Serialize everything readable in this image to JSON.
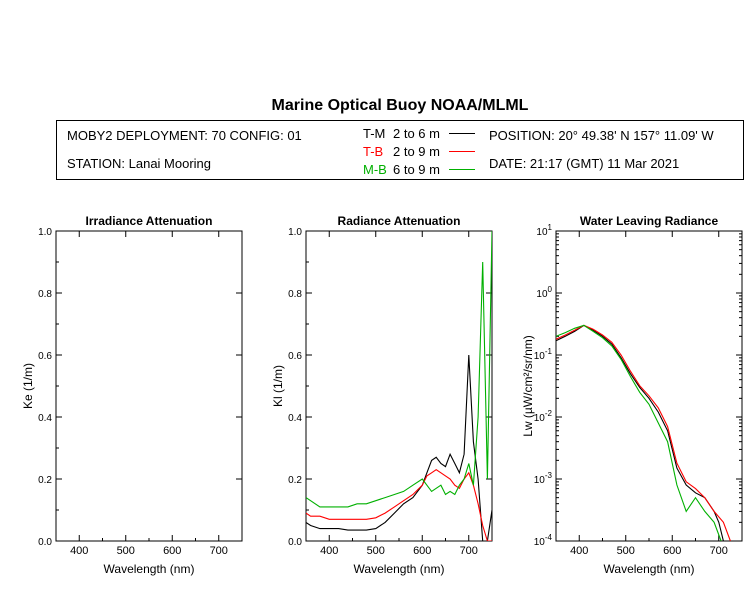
{
  "title": "Marine Optical Buoy NOAA/MLML",
  "info": {
    "deployment": "MOBY2 DEPLOYMENT: 70 CONFIG: 01",
    "station": "STATION: Lanai Mooring",
    "position": "POSITION: 20° 49.38' N   157° 11.09' W",
    "date": "DATE: 21:17 (GMT) 11 Mar 2021"
  },
  "legend": [
    {
      "label": "T-M",
      "depth": "2 to 6  m",
      "color": "#000000"
    },
    {
      "label": "T-B",
      "depth": "2 to 9  m",
      "color": "#ff0000"
    },
    {
      "label": "M-B",
      "depth": "6 to 9  m",
      "color": "#00b000"
    }
  ],
  "colors": {
    "tm": "#000000",
    "tb": "#ff0000",
    "mb": "#00b000"
  },
  "chart_data": [
    {
      "type": "line",
      "title": "Irradiance Attenuation",
      "xlabel": "Wavelength (nm)",
      "ylabel": "Ke  (1/m)",
      "xlim": [
        350,
        750
      ],
      "ylim": [
        0,
        1.0
      ],
      "xticks": [
        400,
        500,
        600,
        700
      ],
      "yticks": [
        "0.0",
        "0.2",
        "0.4",
        "0.6",
        "0.8",
        "1.0"
      ],
      "series": []
    },
    {
      "type": "line",
      "title": "Radiance Attenuation",
      "xlabel": "Wavelength (nm)",
      "ylabel": "Kl  (1/m)",
      "xlim": [
        350,
        750
      ],
      "ylim": [
        0,
        1.0
      ],
      "xticks": [
        400,
        500,
        600,
        700
      ],
      "yticks": [
        "0.0",
        "0.2",
        "0.4",
        "0.6",
        "0.8",
        "1.0"
      ],
      "series": [
        {
          "name": "T-M",
          "color": "#000000",
          "x": [
            350,
            360,
            380,
            400,
            420,
            440,
            460,
            480,
            500,
            520,
            540,
            560,
            580,
            600,
            610,
            620,
            630,
            640,
            650,
            660,
            670,
            680,
            690,
            700,
            710,
            720,
            730,
            740,
            750
          ],
          "y": [
            0.06,
            0.05,
            0.04,
            0.04,
            0.04,
            0.035,
            0.035,
            0.035,
            0.04,
            0.06,
            0.09,
            0.12,
            0.14,
            0.18,
            0.22,
            0.26,
            0.27,
            0.25,
            0.24,
            0.28,
            0.25,
            0.22,
            0.28,
            0.6,
            0.32,
            0.2,
            0.0,
            0.0,
            0.1
          ]
        },
        {
          "name": "T-B",
          "color": "#ff0000",
          "x": [
            350,
            360,
            380,
            400,
            420,
            440,
            460,
            480,
            500,
            520,
            540,
            560,
            580,
            600,
            610,
            620,
            630,
            640,
            650,
            660,
            670,
            680,
            690,
            700,
            710,
            720,
            730,
            740,
            750
          ],
          "y": [
            0.09,
            0.08,
            0.08,
            0.07,
            0.07,
            0.07,
            0.07,
            0.07,
            0.075,
            0.09,
            0.11,
            0.13,
            0.15,
            0.18,
            0.21,
            0.22,
            0.23,
            0.22,
            0.21,
            0.2,
            0.18,
            0.17,
            0.2,
            0.22,
            0.18,
            0.12,
            0.05,
            0.0,
            0.0
          ]
        },
        {
          "name": "M-B",
          "color": "#00b000",
          "x": [
            350,
            360,
            380,
            400,
            420,
            440,
            460,
            480,
            500,
            520,
            540,
            560,
            580,
            600,
            610,
            620,
            630,
            640,
            650,
            660,
            670,
            680,
            690,
            700,
            710,
            720,
            730,
            740,
            750
          ],
          "y": [
            0.14,
            0.13,
            0.11,
            0.11,
            0.11,
            0.11,
            0.12,
            0.12,
            0.13,
            0.14,
            0.15,
            0.16,
            0.18,
            0.2,
            0.18,
            0.16,
            0.17,
            0.18,
            0.15,
            0.16,
            0.15,
            0.18,
            0.2,
            0.25,
            0.18,
            0.4,
            0.9,
            0.2,
            1.0
          ]
        }
      ]
    },
    {
      "type": "line",
      "title": "Water Leaving Radiance",
      "xlabel": "Wavelength (nm)",
      "ylabel": "Lw  (µW/cm²/sr/nm)",
      "yscale": "log",
      "xlim": [
        350,
        750
      ],
      "ylim": [
        0.0001,
        10
      ],
      "xticks": [
        400,
        500,
        600,
        700
      ],
      "yticks": [
        "10^1",
        "10^0",
        "10^-1",
        "10^-2",
        "10^-3",
        "10^-4"
      ],
      "series": [
        {
          "name": "T-M",
          "color": "#000000",
          "x": [
            350,
            370,
            390,
            410,
            430,
            450,
            470,
            490,
            510,
            530,
            550,
            570,
            590,
            610,
            630,
            650,
            670,
            690,
            700,
            710,
            720
          ],
          "y": [
            0.17,
            0.2,
            0.24,
            0.3,
            0.25,
            0.2,
            0.15,
            0.09,
            0.05,
            0.03,
            0.02,
            0.012,
            0.006,
            0.0015,
            0.0008,
            0.0006,
            0.0005,
            0.0003,
            0.0002,
            0.0001,
            0.0001
          ]
        },
        {
          "name": "T-B",
          "color": "#ff0000",
          "x": [
            350,
            370,
            390,
            410,
            430,
            450,
            470,
            490,
            510,
            530,
            550,
            570,
            590,
            610,
            630,
            650,
            670,
            690,
            710,
            725
          ],
          "y": [
            0.18,
            0.21,
            0.25,
            0.3,
            0.26,
            0.21,
            0.16,
            0.1,
            0.055,
            0.032,
            0.022,
            0.014,
            0.007,
            0.0018,
            0.0009,
            0.0007,
            0.0005,
            0.0003,
            0.0002,
            0.0001
          ]
        },
        {
          "name": "M-B",
          "color": "#00b000",
          "x": [
            350,
            370,
            390,
            410,
            430,
            450,
            470,
            490,
            510,
            530,
            550,
            570,
            590,
            610,
            630,
            650,
            670,
            690,
            705
          ],
          "y": [
            0.2,
            0.23,
            0.27,
            0.3,
            0.24,
            0.19,
            0.14,
            0.085,
            0.045,
            0.025,
            0.016,
            0.008,
            0.004,
            0.0008,
            0.0003,
            0.0005,
            0.0003,
            0.0002,
            0.0001
          ]
        }
      ]
    }
  ]
}
